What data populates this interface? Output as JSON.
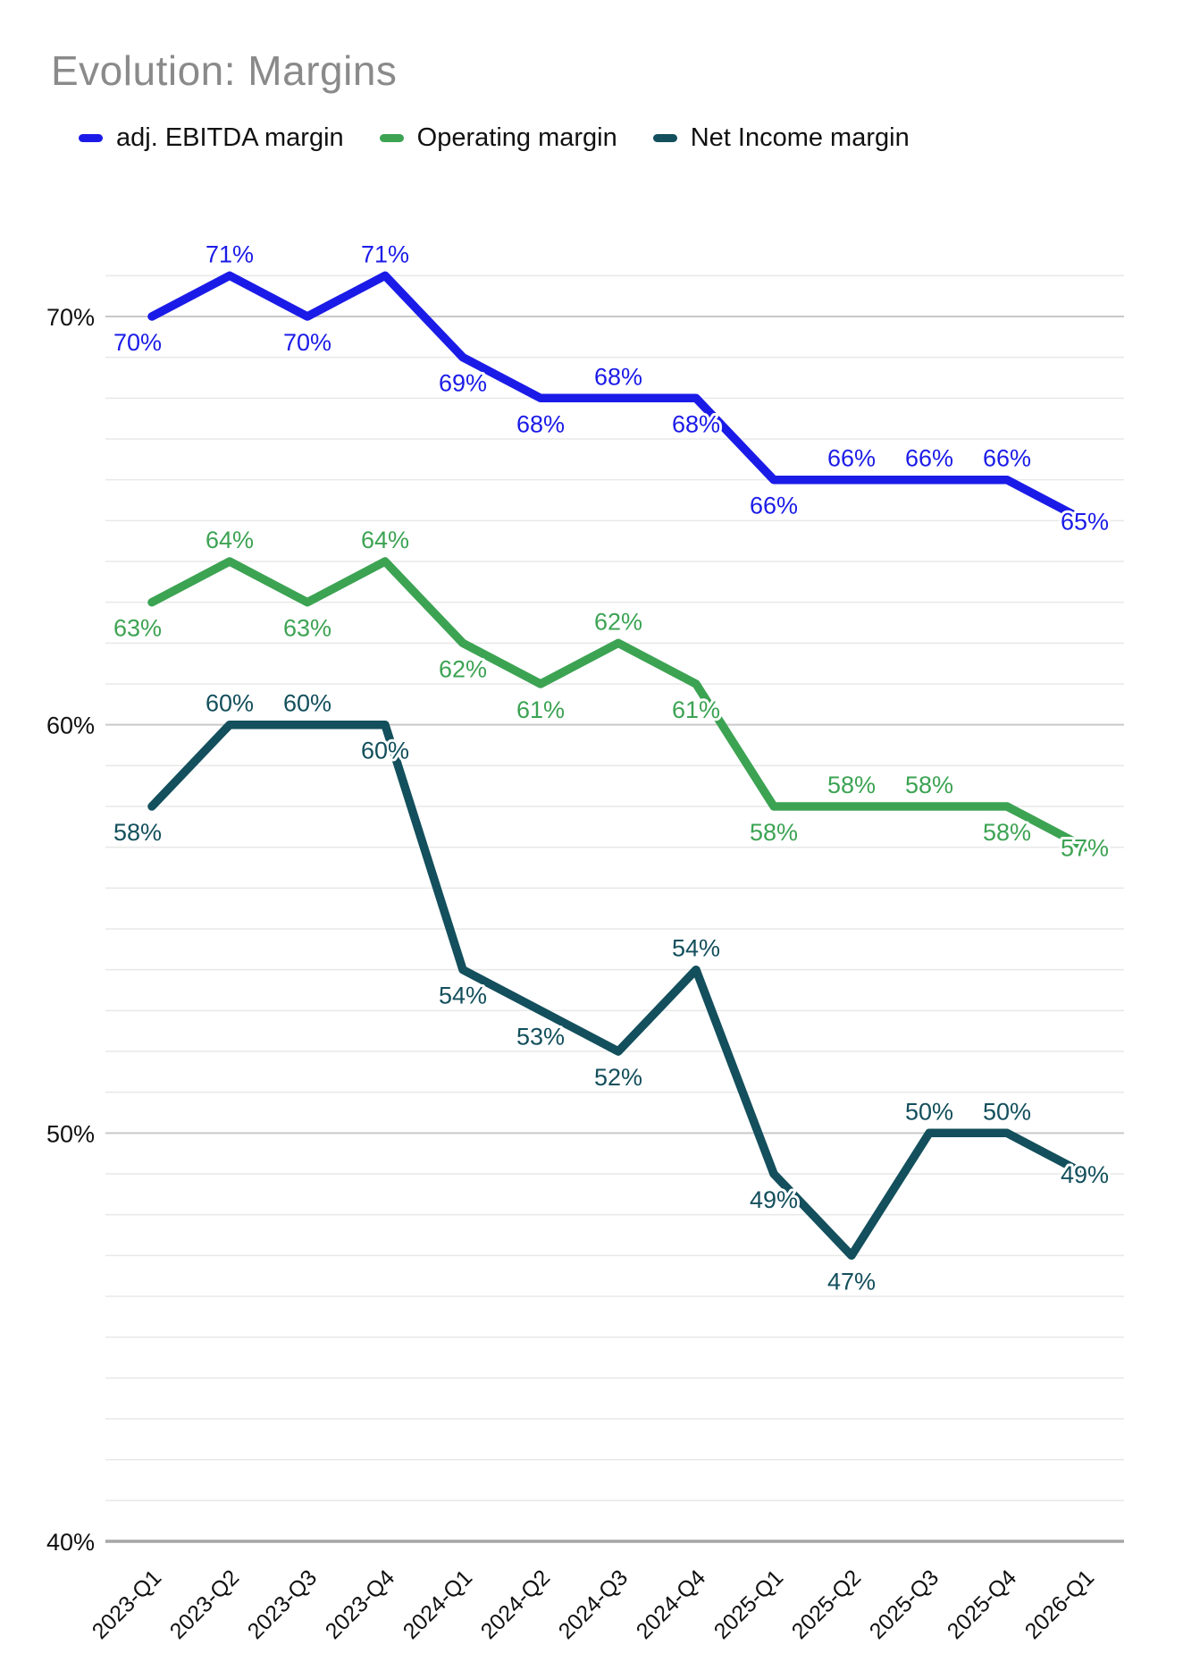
{
  "title": "Evolution: Margins",
  "chart_data": {
    "type": "line",
    "title": "Evolution: Margins",
    "categories": [
      "2023-Q1",
      "2023-Q2",
      "2023-Q3",
      "2023-Q4",
      "2024-Q1",
      "2024-Q2",
      "2024-Q3",
      "2024-Q4",
      "2025-Q1",
      "2025-Q2",
      "2025-Q3",
      "2025-Q4",
      "2026-Q1"
    ],
    "series": [
      {
        "name": "adj. EBITDA margin",
        "color": "#1B1BE8",
        "values": [
          70,
          71,
          70,
          71,
          69,
          68,
          68,
          68,
          66,
          66,
          66,
          66,
          65
        ],
        "labels": [
          "70%",
          "71%",
          "70%",
          "71%",
          "69%",
          "68%",
          "68%",
          "68%",
          "66%",
          "66%",
          "66%",
          "66%",
          "65%"
        ],
        "label_sides": [
          "b",
          "a",
          "b",
          "a",
          "b",
          "b",
          "a",
          "b",
          "b",
          "a",
          "a",
          "a",
          "c"
        ]
      },
      {
        "name": "Operating margin",
        "color": "#3CA353",
        "values": [
          63,
          64,
          63,
          64,
          62,
          61,
          62,
          61,
          58,
          58,
          58,
          58,
          57
        ],
        "labels": [
          "63%",
          "64%",
          "63%",
          "64%",
          "62%",
          "61%",
          "62%",
          "61%",
          "58%",
          "58%",
          "58%",
          "58%",
          "57%"
        ],
        "label_sides": [
          "b",
          "a",
          "b",
          "a",
          "b",
          "b",
          "a",
          "b",
          "b",
          "a",
          "a",
          "b",
          "c"
        ]
      },
      {
        "name": "Net Income margin",
        "color": "#134F5C",
        "values": [
          58,
          60,
          60,
          60,
          54,
          53,
          52,
          54,
          49,
          47,
          50,
          50,
          49
        ],
        "labels": [
          "58%",
          "60%",
          "60%",
          "60%",
          "54%",
          "53%",
          "52%",
          "54%",
          "49%",
          "47%",
          "50%",
          "50%",
          "49%"
        ],
        "label_sides": [
          "b",
          "a",
          "a",
          "b",
          "b",
          "b",
          "b",
          "a",
          "b",
          "b",
          "a",
          "a",
          "c"
        ]
      }
    ],
    "y_axis": {
      "tick_values": [
        70,
        60,
        50,
        40
      ],
      "tick_labels": [
        "70%",
        "60%",
        "50%",
        "40%"
      ],
      "ylim": [
        40,
        72
      ],
      "unit": "%"
    },
    "x_axis": {
      "rotation": -45
    },
    "grid": {
      "minor_step": 1,
      "major_step": 10,
      "visible": true
    },
    "legend_position": "top",
    "data_labels": true
  },
  "colors": {
    "title_text": "#8A8A8A",
    "axis_text": "#111111",
    "grid_minor": "#E8E8E8",
    "grid_major": "#C9C9C9",
    "grid_baseline": "#A6A6A6",
    "background": "#FFFFFF"
  }
}
